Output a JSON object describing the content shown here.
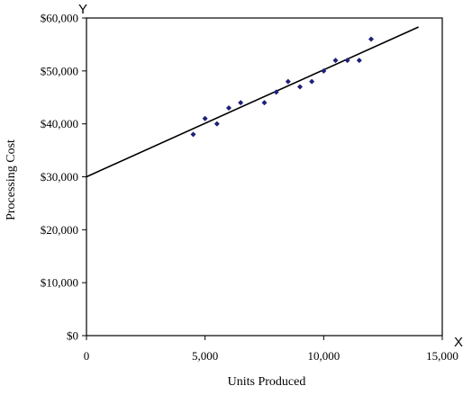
{
  "chart_data": {
    "type": "scatter",
    "title": "",
    "xlabel": "Units Produced",
    "ylabel": "Processing Cost",
    "x_axis_letter": "X",
    "y_axis_letter": "Y",
    "xlim": [
      0,
      15000
    ],
    "ylim": [
      0,
      60000
    ],
    "x_ticks": [
      0,
      5000,
      10000,
      15000
    ],
    "x_tick_labels": [
      "0",
      "5,000",
      "10,000",
      "15,000"
    ],
    "y_ticks": [
      0,
      10000,
      20000,
      30000,
      40000,
      50000,
      60000
    ],
    "y_tick_labels": [
      "$0",
      "$10,000",
      "$20,000",
      "$30,000",
      "$40,000",
      "$50,000",
      "$60,000"
    ],
    "grid": false,
    "legend": "none",
    "marker_color": "#1f1f7a",
    "line_color": "#000000",
    "points": [
      {
        "x": 4500,
        "y": 38000
      },
      {
        "x": 5000,
        "y": 41000
      },
      {
        "x": 5500,
        "y": 40000
      },
      {
        "x": 6000,
        "y": 43000
      },
      {
        "x": 6500,
        "y": 44000
      },
      {
        "x": 7500,
        "y": 44000
      },
      {
        "x": 8000,
        "y": 46000
      },
      {
        "x": 8500,
        "y": 48000
      },
      {
        "x": 9000,
        "y": 47000
      },
      {
        "x": 9500,
        "y": 48000
      },
      {
        "x": 10000,
        "y": 50000
      },
      {
        "x": 10500,
        "y": 52000
      },
      {
        "x": 11000,
        "y": 52000
      },
      {
        "x": 11500,
        "y": 52000
      },
      {
        "x": 12000,
        "y": 56000
      }
    ],
    "trend_line": {
      "x": [
        0,
        14000
      ],
      "y": [
        30000,
        58300
      ]
    }
  }
}
